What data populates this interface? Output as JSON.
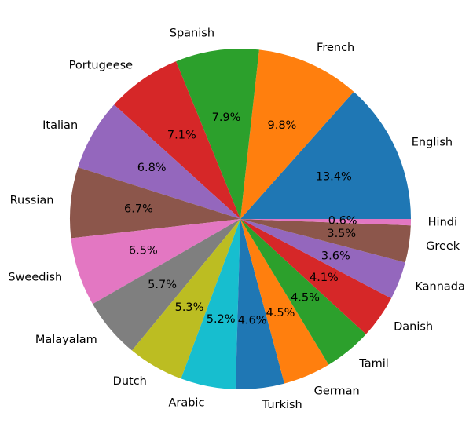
{
  "chart_data": {
    "type": "pie",
    "start_angle_deg": 0,
    "direction": "counterclockwise",
    "slices": [
      {
        "label": "English",
        "value": 13.4,
        "pct_label": "13.4%",
        "color": "#1f77b4"
      },
      {
        "label": "French",
        "value": 9.8,
        "pct_label": "9.8%",
        "color": "#ff7f0e"
      },
      {
        "label": "Spanish",
        "value": 7.9,
        "pct_label": "7.9%",
        "color": "#2ca02c"
      },
      {
        "label": "Portugeese",
        "value": 7.1,
        "pct_label": "7.1%",
        "color": "#d62728"
      },
      {
        "label": "Italian",
        "value": 6.8,
        "pct_label": "6.8%",
        "color": "#9467bd"
      },
      {
        "label": "Russian",
        "value": 6.7,
        "pct_label": "6.7%",
        "color": "#8c564b"
      },
      {
        "label": "Sweedish",
        "value": 6.5,
        "pct_label": "6.5%",
        "color": "#e377c2"
      },
      {
        "label": "Malayalam",
        "value": 5.7,
        "pct_label": "5.7%",
        "color": "#7f7f7f"
      },
      {
        "label": "Dutch",
        "value": 5.3,
        "pct_label": "5.3%",
        "color": "#bcbd22"
      },
      {
        "label": "Arabic",
        "value": 5.2,
        "pct_label": "5.2%",
        "color": "#17becf"
      },
      {
        "label": "Turkish",
        "value": 4.6,
        "pct_label": "4.6%",
        "color": "#1f77b4"
      },
      {
        "label": "German",
        "value": 4.5,
        "pct_label": "4.5%",
        "color": "#ff7f0e"
      },
      {
        "label": "Tamil",
        "value": 4.5,
        "pct_label": "4.5%",
        "color": "#2ca02c"
      },
      {
        "label": "Danish",
        "value": 4.1,
        "pct_label": "4.1%",
        "color": "#d62728"
      },
      {
        "label": "Kannada",
        "value": 3.6,
        "pct_label": "3.6%",
        "color": "#9467bd"
      },
      {
        "label": "Greek",
        "value": 3.5,
        "pct_label": "3.5%",
        "color": "#8c564b"
      },
      {
        "label": "Hindi",
        "value": 0.6,
        "pct_label": "0.6%",
        "color": "#e377c2"
      }
    ]
  }
}
